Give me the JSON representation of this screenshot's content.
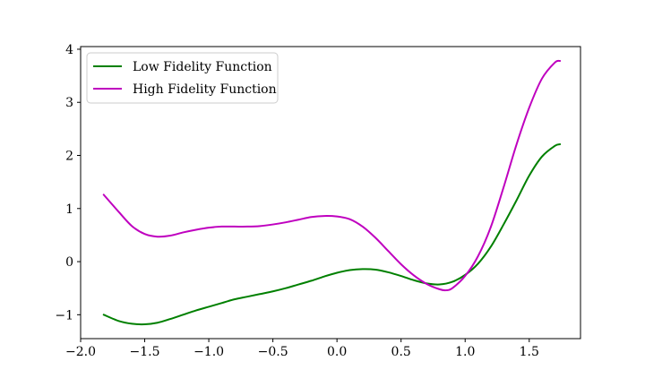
{
  "chart_data": {
    "type": "line",
    "xlim": [
      -2.0,
      1.9
    ],
    "ylim": [
      -1.45,
      4.05
    ],
    "grid": false,
    "legend_position": "top-left",
    "x_ticks": [
      {
        "value": -2.0,
        "label": "−2.0"
      },
      {
        "value": -1.5,
        "label": "−1.5"
      },
      {
        "value": -1.0,
        "label": "−1.0"
      },
      {
        "value": -0.5,
        "label": "−0.5"
      },
      {
        "value": 0.0,
        "label": "0.0"
      },
      {
        "value": 0.5,
        "label": "0.5"
      },
      {
        "value": 1.0,
        "label": "1.0"
      },
      {
        "value": 1.5,
        "label": "1.5"
      }
    ],
    "y_ticks": [
      {
        "value": -1,
        "label": "−1"
      },
      {
        "value": 0,
        "label": "0"
      },
      {
        "value": 1,
        "label": "1"
      },
      {
        "value": 2,
        "label": "2"
      },
      {
        "value": 3,
        "label": "3"
      },
      {
        "value": 4,
        "label": "4"
      }
    ],
    "series": [
      {
        "name": "Low Fidelity Function",
        "color": "#008000",
        "x": [
          -1.82,
          -1.7,
          -1.6,
          -1.5,
          -1.4,
          -1.3,
          -1.2,
          -1.1,
          -1.0,
          -0.9,
          -0.8,
          -0.7,
          -0.6,
          -0.5,
          -0.4,
          -0.3,
          -0.2,
          -0.1,
          0.0,
          0.1,
          0.2,
          0.3,
          0.4,
          0.5,
          0.6,
          0.7,
          0.8,
          0.9,
          1.0,
          1.1,
          1.2,
          1.3,
          1.4,
          1.5,
          1.6,
          1.7,
          1.74
        ],
        "y": [
          -1.0,
          -1.12,
          -1.17,
          -1.18,
          -1.15,
          -1.08,
          -1.0,
          -0.92,
          -0.85,
          -0.78,
          -0.71,
          -0.66,
          -0.61,
          -0.56,
          -0.5,
          -0.43,
          -0.36,
          -0.28,
          -0.21,
          -0.16,
          -0.14,
          -0.15,
          -0.2,
          -0.27,
          -0.35,
          -0.41,
          -0.43,
          -0.38,
          -0.25,
          -0.04,
          0.28,
          0.7,
          1.15,
          1.62,
          1.98,
          2.18,
          2.21
        ]
      },
      {
        "name": "High Fidelity Function",
        "color": "#bf00bf",
        "x": [
          -1.82,
          -1.7,
          -1.6,
          -1.5,
          -1.4,
          -1.3,
          -1.2,
          -1.1,
          -1.0,
          -0.9,
          -0.8,
          -0.7,
          -0.6,
          -0.5,
          -0.4,
          -0.3,
          -0.2,
          -0.1,
          0.0,
          0.1,
          0.2,
          0.3,
          0.4,
          0.5,
          0.6,
          0.7,
          0.8,
          0.85,
          0.9,
          1.0,
          1.1,
          1.2,
          1.3,
          1.4,
          1.5,
          1.6,
          1.7,
          1.74
        ],
        "y": [
          1.26,
          0.93,
          0.67,
          0.52,
          0.47,
          0.49,
          0.55,
          0.6,
          0.64,
          0.66,
          0.66,
          0.66,
          0.67,
          0.7,
          0.74,
          0.79,
          0.84,
          0.86,
          0.85,
          0.8,
          0.66,
          0.45,
          0.2,
          -0.05,
          -0.26,
          -0.42,
          -0.52,
          -0.54,
          -0.5,
          -0.27,
          0.1,
          0.65,
          1.4,
          2.2,
          2.9,
          3.45,
          3.75,
          3.78
        ]
      }
    ]
  }
}
